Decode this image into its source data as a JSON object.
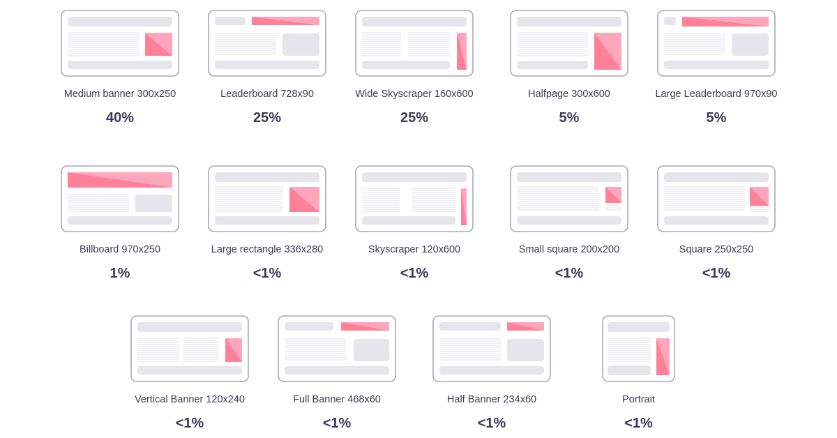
{
  "colors": {
    "border": "#aaa7b9",
    "gray": "#e6e5eb",
    "line": "#e3e3e8",
    "ad_dark": "#ff8099",
    "ad_light": "#ffa6bc",
    "text": "#3b3a57"
  },
  "items": [
    {
      "label": "Medium banner 300x250",
      "share": "40%",
      "layout": "medium-banner"
    },
    {
      "label": "Leaderboard 728x90",
      "share": "25%",
      "layout": "leaderboard"
    },
    {
      "label": "Wide Skyscraper 160x600",
      "share": "25%",
      "layout": "wide-skyscraper"
    },
    {
      "label": "Halfpage 300x600",
      "share": "5%",
      "layout": "halfpage"
    },
    {
      "label": "Large Leaderboard 970x90",
      "share": "5%",
      "layout": "large-leaderboard"
    },
    {
      "label": "Billboard 970x250",
      "share": "1%",
      "layout": "billboard"
    },
    {
      "label": "Large rectangle 336x280",
      "share": "<1%",
      "layout": "large-rectangle"
    },
    {
      "label": "Skyscraper 120x600",
      "share": "<1%",
      "layout": "skyscraper"
    },
    {
      "label": "Small square 200x200",
      "share": "<1%",
      "layout": "small-square"
    },
    {
      "label": "Square 250x250",
      "share": "<1%",
      "layout": "square"
    },
    {
      "label": "Vertical Banner 120x240",
      "share": "<1%",
      "layout": "vertical-banner"
    },
    {
      "label": "Full Banner 468x60",
      "share": "<1%",
      "layout": "full-banner"
    },
    {
      "label": "Half Banner 234x60",
      "share": "<1%",
      "layout": "half-banner"
    },
    {
      "label": "Portrait",
      "share": "<1%",
      "layout": "portrait"
    }
  ]
}
